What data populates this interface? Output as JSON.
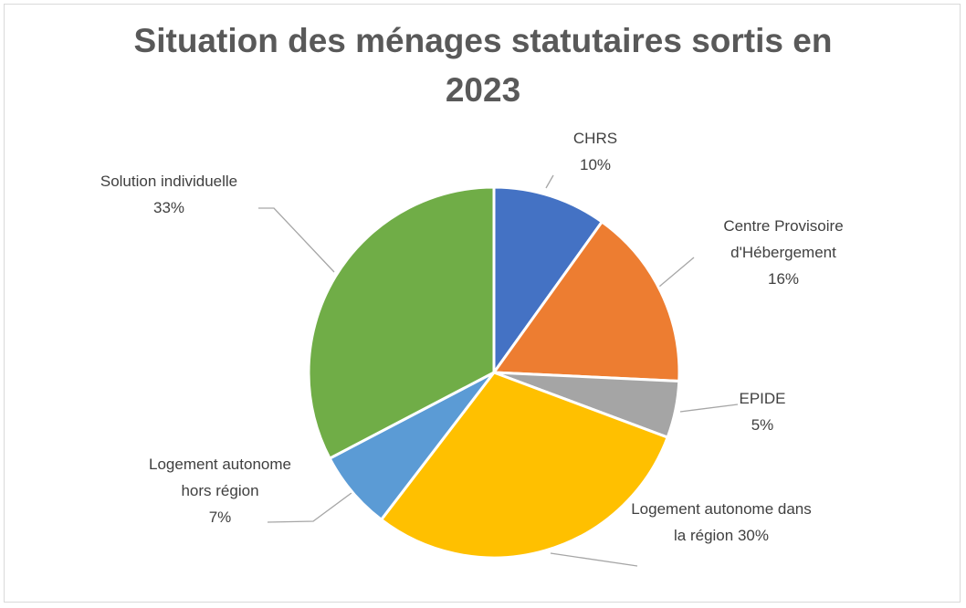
{
  "chart_data": {
    "type": "pie",
    "title": "Situation des ménages statutaires sortis en 2023",
    "categories": [
      "CHRS",
      "Centre Provisoire d'Hébergement",
      "EPIDE",
      "Logement autonome dans la région",
      "Logement autonome hors région",
      "Solution individuelle"
    ],
    "values": [
      10,
      16,
      5,
      30,
      7,
      33
    ],
    "value_labels": [
      "10%",
      "16%",
      "5%",
      "30%",
      "7%",
      "33%"
    ],
    "colors": [
      "#4472c4",
      "#ed7d31",
      "#a5a5a5",
      "#ffc000",
      "#5b9bd5",
      "#70ad47"
    ]
  }
}
